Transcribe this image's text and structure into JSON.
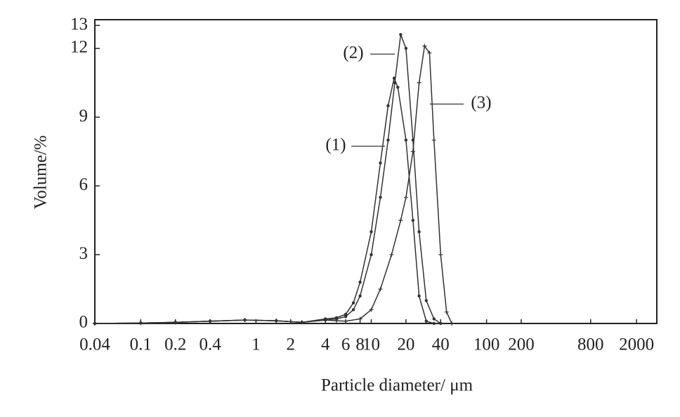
{
  "chart_data": {
    "type": "line",
    "x_label": "Particle diameter/ μm",
    "y_label": "Volume/%",
    "xscale": "log",
    "xlim": [
      0.04,
      3000
    ],
    "xticks": [
      0.04,
      0.1,
      0.2,
      0.4,
      1,
      2,
      4,
      6,
      8,
      10,
      20,
      40,
      100,
      200,
      800,
      2000
    ],
    "ylim": [
      0,
      13.25
    ],
    "yticks": [
      0,
      3,
      6,
      9,
      12,
      13
    ],
    "grid": false,
    "series": [
      {
        "name": "(1)",
        "color": "#333333",
        "marker": "dot",
        "x": [
          0.04,
          0.1,
          0.2,
          0.4,
          0.8,
          1.5,
          2.5,
          4,
          5,
          6,
          7,
          8,
          10,
          12,
          14,
          15.8,
          17,
          20,
          23,
          26,
          30,
          35
        ],
        "values": [
          0,
          0.02,
          0.05,
          0.1,
          0.15,
          0.12,
          0.05,
          0.2,
          0.25,
          0.4,
          0.9,
          1.8,
          4,
          7,
          9.5,
          10.7,
          10.3,
          8,
          4.5,
          1.2,
          0.1,
          0
        ]
      },
      {
        "name": "(2)",
        "color": "#333333",
        "marker": "dot",
        "x": [
          0.04,
          0.1,
          0.2,
          0.4,
          0.8,
          1.5,
          2.5,
          4,
          5,
          6,
          7,
          8,
          10,
          12,
          14,
          16,
          18,
          20,
          23,
          26,
          30,
          35,
          40
        ],
        "values": [
          0,
          0.02,
          0.05,
          0.1,
          0.15,
          0.12,
          0.05,
          0.15,
          0.2,
          0.3,
          0.6,
          1.2,
          3,
          5.5,
          8,
          10.5,
          12.6,
          12,
          8,
          4,
          1,
          0.2,
          0
        ]
      },
      {
        "name": "(3)",
        "color": "#333333",
        "marker": "plus",
        "x": [
          0.04,
          0.1,
          0.2,
          0.4,
          0.8,
          1.5,
          2.5,
          4,
          5,
          6,
          8,
          10,
          12,
          15,
          18,
          20,
          23,
          26,
          29,
          32,
          35,
          40,
          45,
          50
        ],
        "values": [
          0,
          0.02,
          0.05,
          0.1,
          0.15,
          0.12,
          0.05,
          0.15,
          0.12,
          0.1,
          0.2,
          0.6,
          1.5,
          3,
          4.5,
          5.5,
          7.5,
          10.5,
          12.1,
          11.8,
          8,
          3,
          0.5,
          0
        ]
      }
    ]
  }
}
